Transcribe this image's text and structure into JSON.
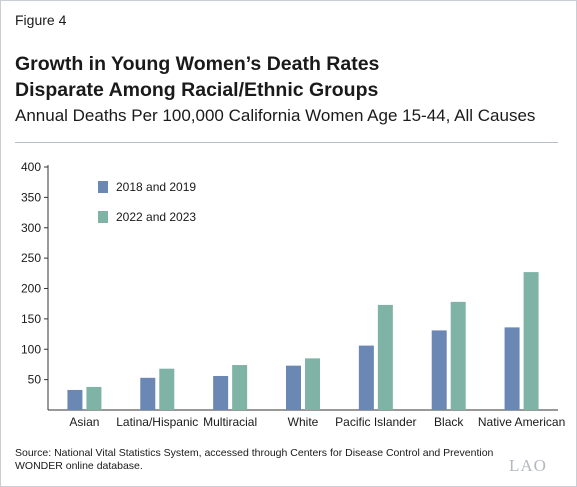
{
  "figure_label": "Figure 4",
  "title_line1": "Growth in Young Women’s Death Rates",
  "title_line2": "Disparate Among Racial/Ethnic Groups",
  "subtitle": "Annual Deaths Per 100,000 California Women Age 15-44, All Causes",
  "source_line1": "Source: National Vital Statistics System, accessed through Centers for Disease Control and Prevention",
  "source_line2": "WONDER online database.",
  "logo_text": "LAO",
  "chart_data": {
    "type": "bar",
    "categories": [
      "Asian",
      "Latina/Hispanic",
      "Multiracial",
      "White",
      "Pacific Islander",
      "Black",
      "Native American"
    ],
    "series": [
      {
        "name": "2018 and 2019",
        "color": "#6b87b4",
        "values": [
          33,
          53,
          56,
          73,
          106,
          131,
          136
        ]
      },
      {
        "name": "2022 and 2023",
        "color": "#7fb3a6",
        "values": [
          38,
          68,
          74,
          85,
          173,
          178,
          227
        ]
      }
    ],
    "ylim": [
      0,
      400
    ],
    "yticks": [
      50,
      100,
      150,
      200,
      250,
      300,
      350,
      400
    ],
    "legend_position": "top-left",
    "grid": false
  }
}
